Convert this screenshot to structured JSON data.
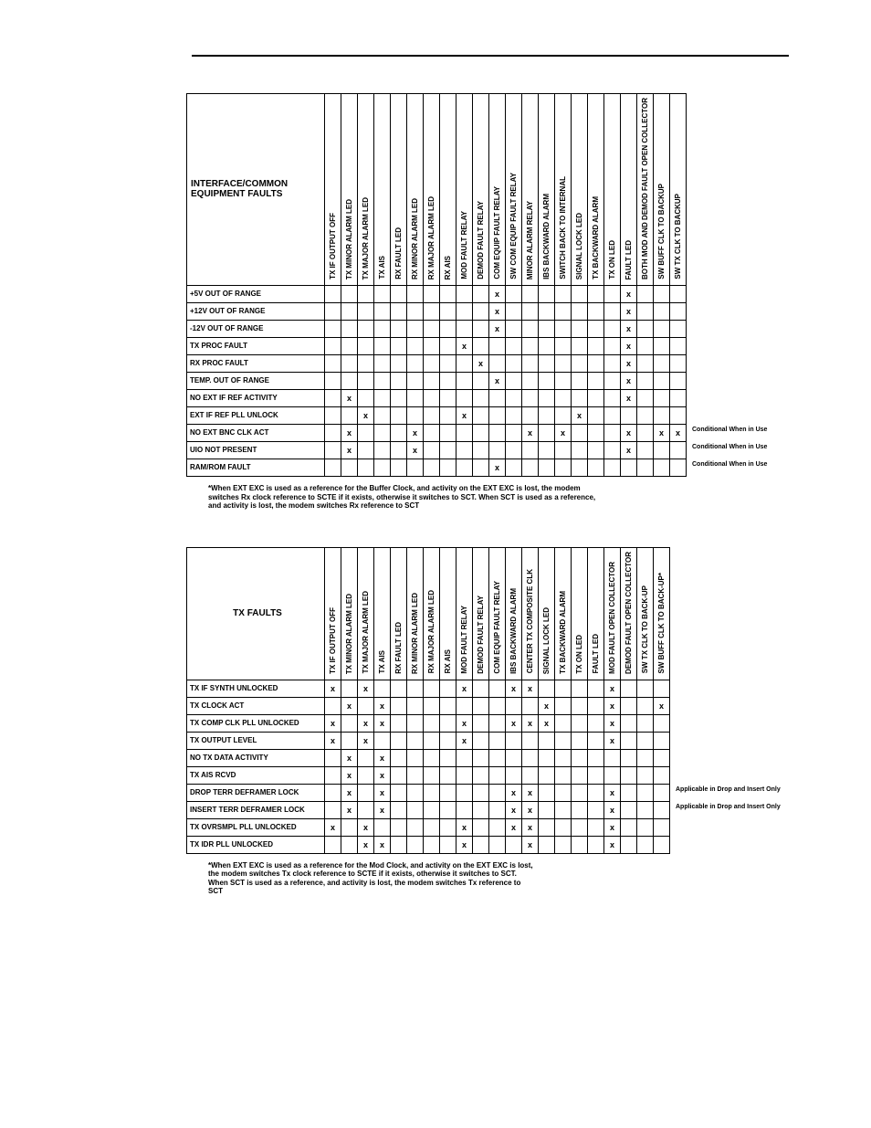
{
  "table1": {
    "title": "INTERFACE/COMMON EQUIPMENT FAULTS",
    "columns": [
      "TX IF OUTPUT OFF",
      "TX MINOR ALARM LED",
      "TX MAJOR ALARM LED",
      "TX AIS",
      "RX FAULT LED",
      "RX MINOR ALARM LED",
      "RX MAJOR ALARM LED",
      "RX AIS",
      "MOD FAULT RELAY",
      "DEMOD FAULT RELAY",
      "COM EQUIP FAULT RELAY",
      "SW COM EQUIP FAULT RELAY",
      "MINOR ALARM RELAY",
      "IBS BACKWARD ALARM",
      "SWITCH BACK TO INTERNAL",
      "SIGNAL LOCK LED",
      "TX BACKWARD ALARM",
      "TX ON LED",
      "FAULT LED",
      "BOTH MOD AND DEMOD FAULT OPEN COLLECTOR",
      "SW BUFF CLK TO BACKUP",
      "SW TX CLK TO BACKUP"
    ],
    "rows": [
      {
        "label": "+5V OUT OF RANGE",
        "marks": [
          10,
          18
        ]
      },
      {
        "label": "+12V OUT OF RANGE",
        "marks": [
          10,
          18
        ]
      },
      {
        "label": "-12V OUT OF RANGE",
        "marks": [
          10,
          18
        ]
      },
      {
        "label": "TX PROC FAULT",
        "marks": [
          8,
          18
        ]
      },
      {
        "label": "RX PROC FAULT",
        "marks": [
          9,
          18
        ]
      },
      {
        "label": "TEMP. OUT OF RANGE",
        "marks": [
          10,
          18
        ]
      },
      {
        "label": "NO EXT IF REF ACTIVITY",
        "marks": [
          1,
          18
        ]
      },
      {
        "label": "EXT IF REF PLL UNLOCK",
        "marks": [
          2,
          8,
          15
        ]
      },
      {
        "label": "NO EXT BNC CLK ACT",
        "marks": [
          1,
          5,
          12,
          14,
          18,
          20,
          21
        ],
        "note": "Conditional When in Use"
      },
      {
        "label": "UIO NOT PRESENT",
        "marks": [
          1,
          5,
          18
        ],
        "note": "Conditional When in Use"
      },
      {
        "label": "RAM/ROM FAULT",
        "marks": [
          10
        ],
        "note": "Conditional When in Use"
      }
    ],
    "footnote": "*When EXT EXC is used as a reference for the Buffer Clock, and activity on the EXT EXC is lost, the modem switches Rx clock reference to SCTE if it exists, otherwise it switches to SCT. When SCT is used as a reference, and activity is lost, the modem switches Rx reference to SCT"
  },
  "table2": {
    "title": "TX FAULTS",
    "columns": [
      "TX IF OUTPUT OFF",
      "TX MINOR ALARM LED",
      "TX MAJOR ALARM LED",
      "TX AIS",
      "RX FAULT LED",
      "RX MINOR ALARM LED",
      "RX MAJOR ALARM LED",
      "RX AIS",
      "MOD FAULT RELAY",
      "DEMOD FAULT RELAY",
      "COM EQUIP FAULT RELAY",
      "IBS BACKWARD ALARM",
      "CENTER TX COMPOSITE CLK",
      "SIGNAL LOCK LED",
      "TX BACKWARD ALARM",
      "TX ON LED",
      "FAULT LED",
      "MOD FAULT OPEN COLLECTOR",
      "DEMOD FAULT OPEN COLLECTOR",
      "SW TX CLK TO BACK-UP",
      "SW BUFF CLK TO BACK-UP*"
    ],
    "rows": [
      {
        "label": "TX IF SYNTH  UNLOCKED",
        "marks": [
          0,
          2,
          8,
          11,
          12,
          17
        ]
      },
      {
        "label": "TX CLOCK ACT",
        "marks": [
          1,
          3,
          13,
          17,
          20
        ]
      },
      {
        "label": "TX COMP CLK PLL UNLOCKED",
        "marks": [
          0,
          2,
          3,
          8,
          11,
          12,
          13,
          17
        ]
      },
      {
        "label": "TX OUTPUT LEVEL",
        "marks": [
          0,
          2,
          8,
          17
        ]
      },
      {
        "label": "NO TX DATA ACTIVITY",
        "marks": [
          1,
          3
        ]
      },
      {
        "label": "TX AIS RCVD",
        "marks": [
          1,
          3
        ]
      },
      {
        "label": "DROP TERR DEFRAMER LOCK",
        "marks": [
          1,
          3,
          11,
          12,
          17
        ],
        "note": "Applicable in Drop and Insert Only"
      },
      {
        "label": "INSERT TERR DEFRAMER LOCK",
        "marks": [
          1,
          3,
          11,
          12,
          17
        ],
        "note": "Applicable in Drop and Insert Only"
      },
      {
        "label": "TX OVRSMPL PLL UNLOCKED",
        "marks": [
          0,
          2,
          8,
          11,
          12,
          17
        ]
      },
      {
        "label": "TX IDR PLL UNLOCKED",
        "marks": [
          2,
          3,
          8,
          12,
          17
        ]
      }
    ],
    "footnote": "*When EXT EXC is used as a reference for the Mod Clock, and activity on the EXT EXC is lost, the modem switches Tx clock reference to SCTE if it exists, otherwise it switches to SCT. When SCT is used as a reference, and activity is lost, the modem switches Tx reference to SCT"
  }
}
